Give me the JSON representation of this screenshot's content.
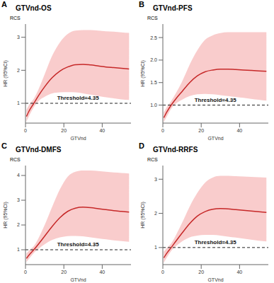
{
  "chart_data": [
    {
      "type": "line",
      "panel": "A",
      "title": "GTVnd-OS",
      "subtitle": "RCS",
      "x_label": "GTVnd",
      "y_label": "HR (95%CI)",
      "annotation": "Threshold=4.35",
      "color": "#c62828",
      "reference_y": 1,
      "x": [
        0.5,
        2,
        4.35,
        7,
        10,
        14,
        18,
        22,
        26,
        30,
        34,
        38,
        42,
        46,
        50,
        54
      ],
      "values": [
        0.6,
        0.78,
        1.0,
        1.25,
        1.5,
        1.78,
        1.98,
        2.1,
        2.17,
        2.18,
        2.16,
        2.13,
        2.1,
        2.08,
        2.06,
        2.04
      ],
      "ci_lower": [
        0.45,
        0.63,
        0.88,
        1.08,
        1.2,
        1.3,
        1.33,
        1.34,
        1.33,
        1.3,
        1.26,
        1.22,
        1.18,
        1.15,
        1.12,
        1.1
      ],
      "ci_upper": [
        0.8,
        0.97,
        1.14,
        1.45,
        1.88,
        2.45,
        2.85,
        3.1,
        3.2,
        3.22,
        3.22,
        3.2,
        3.18,
        3.17,
        3.15,
        3.13
      ],
      "xlim": [
        0,
        55
      ],
      "xticks": [
        0,
        20,
        40
      ],
      "ylim": [
        0.4,
        3.4
      ],
      "yticks": [
        1,
        2,
        3
      ]
    },
    {
      "type": "line",
      "panel": "B",
      "title": "GTVnd-PFS",
      "subtitle": "RCS",
      "x_label": "GTVnd",
      "y_label": "HR (95%CI)",
      "annotation": "Threshold=4.35",
      "color": "#c62828",
      "reference_y": 1,
      "x": [
        0.5,
        2,
        4.35,
        7,
        10,
        14,
        18,
        22,
        26,
        30,
        34,
        38,
        42,
        46,
        50,
        54
      ],
      "values": [
        0.72,
        0.84,
        1.0,
        1.15,
        1.3,
        1.5,
        1.65,
        1.74,
        1.78,
        1.8,
        1.8,
        1.79,
        1.78,
        1.77,
        1.76,
        1.75
      ],
      "ci_lower": [
        0.62,
        0.74,
        0.92,
        1.04,
        1.12,
        1.2,
        1.24,
        1.25,
        1.24,
        1.22,
        1.2,
        1.18,
        1.16,
        1.14,
        1.12,
        1.1
      ],
      "ci_upper": [
        0.84,
        0.95,
        1.09,
        1.28,
        1.52,
        1.9,
        2.22,
        2.45,
        2.55,
        2.6,
        2.62,
        2.62,
        2.62,
        2.62,
        2.62,
        2.62
      ],
      "xlim": [
        0,
        55
      ],
      "xticks": [
        0,
        20,
        40
      ],
      "ylim": [
        0.6,
        2.8
      ],
      "yticks": [
        {
          "value": 1,
          "label": "1.0"
        },
        1.5,
        {
          "value": 2,
          "label": "2.0"
        },
        2.5
      ]
    },
    {
      "type": "line",
      "panel": "C",
      "title": "GTVnd-DMFS",
      "subtitle": "RCS",
      "x_label": "GTVnd",
      "y_label": "HR (95%CI)",
      "annotation": "Threshold=4.35",
      "color": "#c62828",
      "reference_y": 1,
      "x": [
        0.5,
        2,
        4.35,
        7,
        10,
        14,
        18,
        22,
        26,
        30,
        34,
        38,
        42,
        46,
        50,
        54
      ],
      "values": [
        0.65,
        0.8,
        1.0,
        1.25,
        1.55,
        1.95,
        2.3,
        2.55,
        2.68,
        2.72,
        2.7,
        2.66,
        2.62,
        2.58,
        2.55,
        2.52
      ],
      "ci_lower": [
        0.5,
        0.65,
        0.87,
        1.05,
        1.22,
        1.4,
        1.5,
        1.55,
        1.56,
        1.54,
        1.5,
        1.46,
        1.42,
        1.38,
        1.35,
        1.32
      ],
      "ci_upper": [
        0.85,
        0.98,
        1.15,
        1.5,
        2.0,
        2.75,
        3.45,
        3.95,
        4.15,
        4.2,
        4.2,
        4.18,
        4.15,
        4.12,
        4.1,
        4.08
      ],
      "xlim": [
        0,
        55
      ],
      "xticks": [
        0,
        20,
        40
      ],
      "ylim": [
        0.4,
        4.4
      ],
      "yticks": [
        1,
        2,
        3,
        4
      ]
    },
    {
      "type": "line",
      "panel": "D",
      "title": "GTVnd-RRFS",
      "subtitle": "RCS",
      "x_label": "GTVnd",
      "y_label": "HR (95%CI)",
      "annotation": "Threshold=4.35",
      "color": "#c62828",
      "reference_y": 1,
      "x": [
        0.5,
        2,
        4.35,
        7,
        10,
        14,
        18,
        22,
        26,
        30,
        34,
        38,
        42,
        46,
        50,
        54
      ],
      "values": [
        0.7,
        0.83,
        1.0,
        1.2,
        1.42,
        1.7,
        1.92,
        2.05,
        2.12,
        2.14,
        2.13,
        2.11,
        2.09,
        2.07,
        2.05,
        2.03
      ],
      "ci_lower": [
        0.55,
        0.7,
        0.9,
        1.05,
        1.18,
        1.3,
        1.35,
        1.37,
        1.37,
        1.35,
        1.32,
        1.29,
        1.26,
        1.23,
        1.2,
        1.18
      ],
      "ci_upper": [
        0.88,
        0.98,
        1.12,
        1.38,
        1.72,
        2.2,
        2.6,
        2.9,
        3.05,
        3.1,
        3.1,
        3.09,
        3.08,
        3.07,
        3.06,
        3.05
      ],
      "xlim": [
        0,
        55
      ],
      "xticks": [
        0,
        20,
        40
      ],
      "ylim": [
        0.5,
        3.4
      ],
      "yticks": [
        1,
        2,
        3
      ]
    }
  ]
}
